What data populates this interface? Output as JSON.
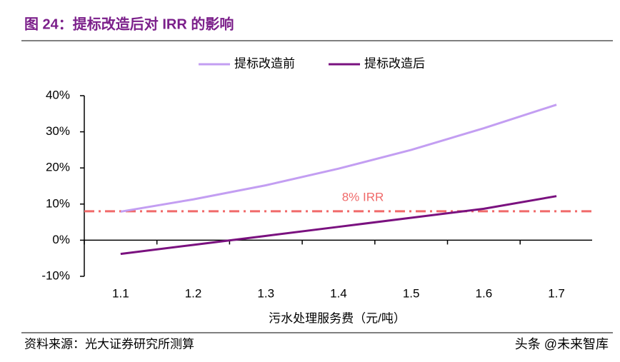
{
  "header": {
    "title": "图 24：提标改造后对 IRR 的影响"
  },
  "chart_data": {
    "type": "line",
    "categories": [
      "1.1",
      "1.2",
      "1.3",
      "1.4",
      "1.5",
      "1.6",
      "1.7"
    ],
    "series": [
      {
        "name": "提标改造前",
        "color": "#c39ef2",
        "values": [
          7.9,
          11.3,
          15.2,
          19.8,
          25,
          31,
          37.5
        ]
      },
      {
        "name": "提标改造后",
        "color": "#7a117f",
        "values": [
          -3.8,
          -1.3,
          1.2,
          3.7,
          6.2,
          8.7,
          12.2
        ]
      }
    ],
    "ylim": [
      -10,
      40
    ],
    "yticks": [
      {
        "value": -10,
        "label": "-10%"
      },
      {
        "value": 0,
        "label": "0%"
      },
      {
        "value": 10,
        "label": "10%"
      },
      {
        "value": 20,
        "label": "20%"
      },
      {
        "value": 30,
        "label": "30%"
      },
      {
        "value": 40,
        "label": "40%"
      }
    ],
    "x_label": "污水处理服务费（元/吨）",
    "reference_line": {
      "value": 8,
      "label": "8% IRR",
      "color": "#f06a6a"
    },
    "legend": "top"
  },
  "footer": {
    "source": "资料来源：光大证券研究所测算",
    "watermark": "头条 @未来智库"
  }
}
